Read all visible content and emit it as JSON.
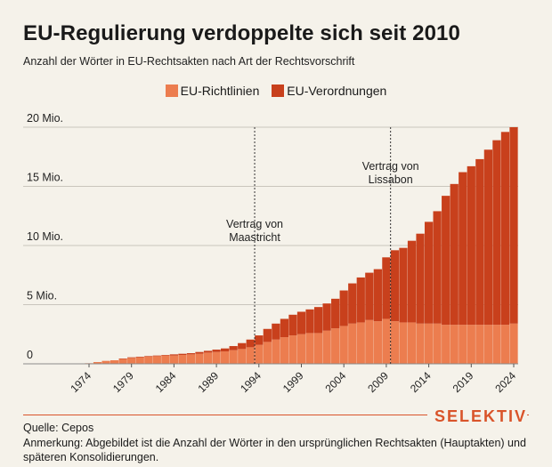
{
  "header": {
    "title": "EU-Regulierung verdoppelte sich seit 2010",
    "subtitle": "Anzahl der Wörter in EU-Rechtsakten nach Art der Rechtsvorschrift"
  },
  "colors": {
    "richtlinien": "#ec7d4f",
    "verordnungen": "#c8401c",
    "grid": "#c9c5bc",
    "brand": "#d9542a"
  },
  "chart_data": {
    "type": "bar",
    "stacked": true,
    "unit": "Mio.",
    "x_start": 1974,
    "x_end": 2024,
    "x_ticks": [
      "1974",
      "1979",
      "1984",
      "1989",
      "1994",
      "1999",
      "2004",
      "2009",
      "2014",
      "2019",
      "2024"
    ],
    "y_ticks": [
      {
        "value": 0,
        "label": "0"
      },
      {
        "value": 5,
        "label": "5 Mio."
      },
      {
        "value": 10,
        "label": "10 Mio."
      },
      {
        "value": 15,
        "label": "15 Mio."
      },
      {
        "value": 20,
        "label": "20 Mio."
      }
    ],
    "ylim": [
      0,
      20
    ],
    "grid": true,
    "legend_position": "top-center",
    "series": [
      {
        "name": "EU-Richtlinien",
        "values": [
          0.05,
          0.15,
          0.25,
          0.3,
          0.4,
          0.5,
          0.55,
          0.6,
          0.65,
          0.7,
          0.7,
          0.75,
          0.8,
          0.85,
          0.95,
          1.0,
          1.05,
          1.15,
          1.25,
          1.4,
          1.6,
          1.85,
          2.05,
          2.25,
          2.4,
          2.5,
          2.6,
          2.6,
          2.8,
          3.0,
          3.2,
          3.4,
          3.5,
          3.7,
          3.6,
          3.8,
          3.6,
          3.5,
          3.5,
          3.4,
          3.4,
          3.4,
          3.3,
          3.3,
          3.3,
          3.3,
          3.3,
          3.3,
          3.3,
          3.3,
          3.4
        ]
      },
      {
        "name": "EU-Verordnungen",
        "values": [
          0.0,
          0.0,
          0.0,
          0.0,
          0.05,
          0.05,
          0.05,
          0.05,
          0.05,
          0.05,
          0.1,
          0.1,
          0.1,
          0.15,
          0.15,
          0.2,
          0.25,
          0.35,
          0.5,
          0.65,
          0.8,
          1.1,
          1.35,
          1.55,
          1.75,
          1.9,
          2.0,
          2.2,
          2.3,
          2.5,
          3.0,
          3.4,
          3.8,
          4.0,
          4.4,
          5.2,
          6.0,
          6.3,
          6.9,
          7.6,
          8.6,
          9.5,
          10.9,
          11.9,
          12.9,
          13.4,
          14.0,
          14.8,
          15.6,
          16.3,
          16.6
        ]
      }
    ],
    "annotations": [
      {
        "year": 1993,
        "lines": [
          "Vertrag von",
          "Maastricht"
        ]
      },
      {
        "year": 2009,
        "lines": [
          "Vertrag von",
          "Lissabon"
        ]
      }
    ]
  },
  "footer": {
    "brand": "SELEKTIV",
    "source": "Quelle: Cepos",
    "note": "Anmerkung: Abgebildet ist die Anzahl der Wörter in den ursprünglichen Rechtsakten (Hauptakten) und späteren Konsolidierungen."
  }
}
